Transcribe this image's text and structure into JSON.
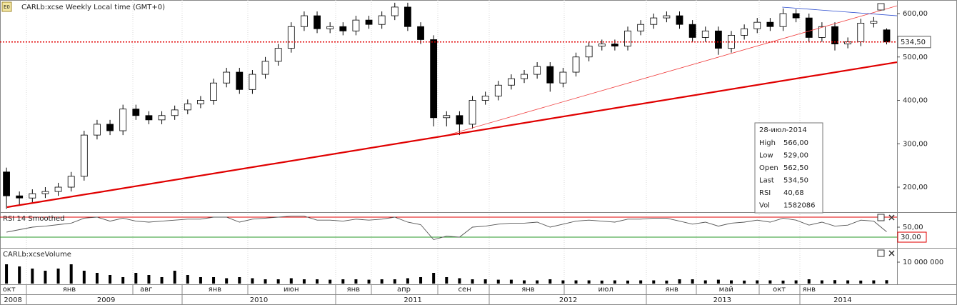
{
  "toolbar": {
    "title": "CARLb:xcse Weekly Local time (GMT+0)"
  },
  "chart_data": [
    {
      "type": "candlestick",
      "open": [
        235,
        180,
        175,
        185,
        190,
        200,
        225,
        320,
        345,
        330,
        380,
        365,
        355,
        365,
        378,
        392,
        400,
        440,
        465,
        425,
        460,
        490,
        520,
        570,
        595,
        565,
        570,
        560,
        585,
        575,
        595,
        615,
        570,
        540,
        360,
        365,
        345,
        400,
        410,
        435,
        450,
        460,
        478,
        440,
        465,
        500,
        525,
        530,
        525,
        560,
        575,
        590,
        595,
        575,
        545,
        560,
        520,
        550,
        565,
        580,
        570,
        600,
        590,
        545,
        570,
        530,
        535,
        578,
        562.5
      ],
      "high": [
        245,
        190,
        195,
        200,
        210,
        235,
        330,
        355,
        355,
        390,
        390,
        375,
        375,
        388,
        402,
        410,
        450,
        475,
        475,
        470,
        500,
        530,
        580,
        605,
        605,
        580,
        580,
        595,
        595,
        605,
        625,
        625,
        580,
        550,
        375,
        375,
        410,
        420,
        445,
        460,
        470,
        488,
        488,
        475,
        510,
        535,
        540,
        540,
        570,
        585,
        600,
        605,
        605,
        585,
        570,
        570,
        560,
        575,
        590,
        590,
        612,
        610,
        600,
        580,
        580,
        545,
        588,
        592,
        566
      ],
      "low": [
        150,
        160,
        165,
        175,
        180,
        190,
        215,
        310,
        320,
        320,
        355,
        345,
        345,
        355,
        368,
        382,
        390,
        430,
        415,
        415,
        450,
        480,
        510,
        560,
        555,
        555,
        550,
        550,
        565,
        565,
        585,
        560,
        530,
        340,
        340,
        320,
        335,
        390,
        400,
        425,
        440,
        450,
        420,
        430,
        455,
        490,
        515,
        515,
        515,
        550,
        565,
        580,
        565,
        535,
        535,
        505,
        510,
        540,
        555,
        560,
        560,
        580,
        535,
        535,
        515,
        520,
        525,
        568,
        529
      ],
      "close": [
        180,
        175,
        185,
        190,
        200,
        225,
        320,
        345,
        330,
        380,
        365,
        355,
        365,
        378,
        392,
        400,
        440,
        465,
        425,
        460,
        490,
        520,
        570,
        595,
        565,
        570,
        560,
        585,
        575,
        595,
        615,
        570,
        540,
        360,
        365,
        345,
        400,
        410,
        435,
        450,
        460,
        478,
        440,
        465,
        500,
        525,
        530,
        525,
        560,
        575,
        590,
        595,
        575,
        545,
        560,
        520,
        550,
        565,
        580,
        570,
        600,
        590,
        545,
        570,
        530,
        535,
        578,
        582,
        534.5
      ],
      "up_color": "#ffffff",
      "down_color": "#000000",
      "xlim": [
        -0.5,
        68.8
      ],
      "ylim": [
        142.4,
        631.3
      ],
      "yticks": [
        {
          "value": 200,
          "label": "200,00"
        },
        {
          "value": 300,
          "label": "300,00"
        },
        {
          "value": 400,
          "label": "400,00"
        },
        {
          "value": 500,
          "label": "500,00"
        },
        {
          "value": 600,
          "label": "600,00"
        }
      ],
      "last": {
        "value": 534.5,
        "label": "534,50"
      },
      "last_color": "#e00000",
      "trend_lines": [
        {
          "x": [
            0.05,
            68.8
          ],
          "y": [
            153.9,
            488
          ],
          "color": "#e00000"
        },
        {
          "x": [
            34.27,
            68.8
          ],
          "y": [
            321.8,
            618
          ],
          "color": "#f04040"
        },
        {
          "x": [
            59.93,
            68.8
          ],
          "y": [
            614.8,
            595
          ],
          "color": "#3050d0"
        }
      ],
      "info_box": {
        "date": "28-июл-2014",
        "rows": [
          [
            "High",
            "566,00"
          ],
          [
            "Low",
            "529,00"
          ],
          [
            "Open",
            "562,50"
          ],
          [
            "Last",
            "534,50"
          ],
          [
            "RSI",
            "40,68"
          ],
          [
            "Vol",
            "1582086"
          ]
        ]
      }
    },
    {
      "type": "line",
      "title": "RSI 14 Smoothed",
      "color": "#555555",
      "values": [
        40,
        45,
        50,
        52,
        55,
        58,
        68,
        70,
        62,
        68,
        62,
        60,
        62,
        64,
        66,
        66,
        70,
        70,
        60,
        66,
        68,
        70,
        72,
        72,
        64,
        64,
        62,
        66,
        64,
        66,
        70,
        60,
        55,
        25,
        32,
        30,
        50,
        52,
        56,
        58,
        58,
        60,
        50,
        56,
        62,
        64,
        62,
        60,
        66,
        66,
        68,
        68,
        62,
        56,
        60,
        52,
        58,
        60,
        64,
        60,
        68,
        64,
        54,
        60,
        52,
        54,
        64,
        62,
        40.68
      ],
      "ylim": [
        8.6,
        78.6
      ],
      "yticks": [
        {
          "value": 50,
          "label": "50,00"
        }
      ],
      "levels": [
        {
          "value": 70,
          "color": "#e00000"
        },
        {
          "value": 30,
          "label": "30,00",
          "color": "#2a9a2a"
        }
      ]
    },
    {
      "type": "bar",
      "title": "CARLb:xcseVolume",
      "color": "#000000",
      "values": [
        9000000,
        8000000,
        7000000,
        6000000,
        7000000,
        9000000,
        6000000,
        5000000,
        4000000,
        3000000,
        5000000,
        4000000,
        3000000,
        6000000,
        4000000,
        3000000,
        3000000,
        2500000,
        3000000,
        2500000,
        2000000,
        2000000,
        2500000,
        2000000,
        2000000,
        1800000,
        2000000,
        2000000,
        1800000,
        2000000,
        2000000,
        2500000,
        3000000,
        5000000,
        3000000,
        2500000,
        2000000,
        2000000,
        1800000,
        1800000,
        1500000,
        1500000,
        2000000,
        1500000,
        1500000,
        1500000,
        1400000,
        1500000,
        1400000,
        1500000,
        1500000,
        1400000,
        2000000,
        2000000,
        1500000,
        1800000,
        1500000,
        1400000,
        1500000,
        1500000,
        1400000,
        1500000,
        2000000,
        1500000,
        1600000,
        1500000,
        1400000,
        1500000,
        1582086
      ],
      "ylim": [
        0,
        16330000
      ],
      "yticks": [
        {
          "value": 10000000,
          "label": "10 000 000"
        }
      ]
    }
  ],
  "time_axis": {
    "months": [
      {
        "value": 0.2,
        "label": "окт"
      },
      {
        "value": 4.85,
        "label": "янв"
      },
      {
        "value": 10.8,
        "label": "авг"
      },
      {
        "value": 16.1,
        "label": "янв"
      },
      {
        "value": 22.0,
        "label": "июн"
      },
      {
        "value": 26.8,
        "label": "янв"
      },
      {
        "value": 30.7,
        "label": "апр"
      },
      {
        "value": 35.4,
        "label": "сен"
      },
      {
        "value": 40.3,
        "label": "янв"
      },
      {
        "value": 46.3,
        "label": "июл"
      },
      {
        "value": 51.4,
        "label": "янв"
      },
      {
        "value": 55.6,
        "label": "май"
      },
      {
        "value": 59.7,
        "label": "окт"
      },
      {
        "value": 62.0,
        "label": "янв"
      }
    ],
    "years": [
      {
        "value": 0.5,
        "label": "2008"
      },
      {
        "value": 7.7,
        "label": "2009"
      },
      {
        "value": 19.5,
        "label": "2010"
      },
      {
        "value": 31.4,
        "label": "2011"
      },
      {
        "value": 43.4,
        "label": "2012"
      },
      {
        "value": 55.3,
        "label": "2013"
      },
      {
        "value": 64.6,
        "label": "2014"
      }
    ]
  }
}
